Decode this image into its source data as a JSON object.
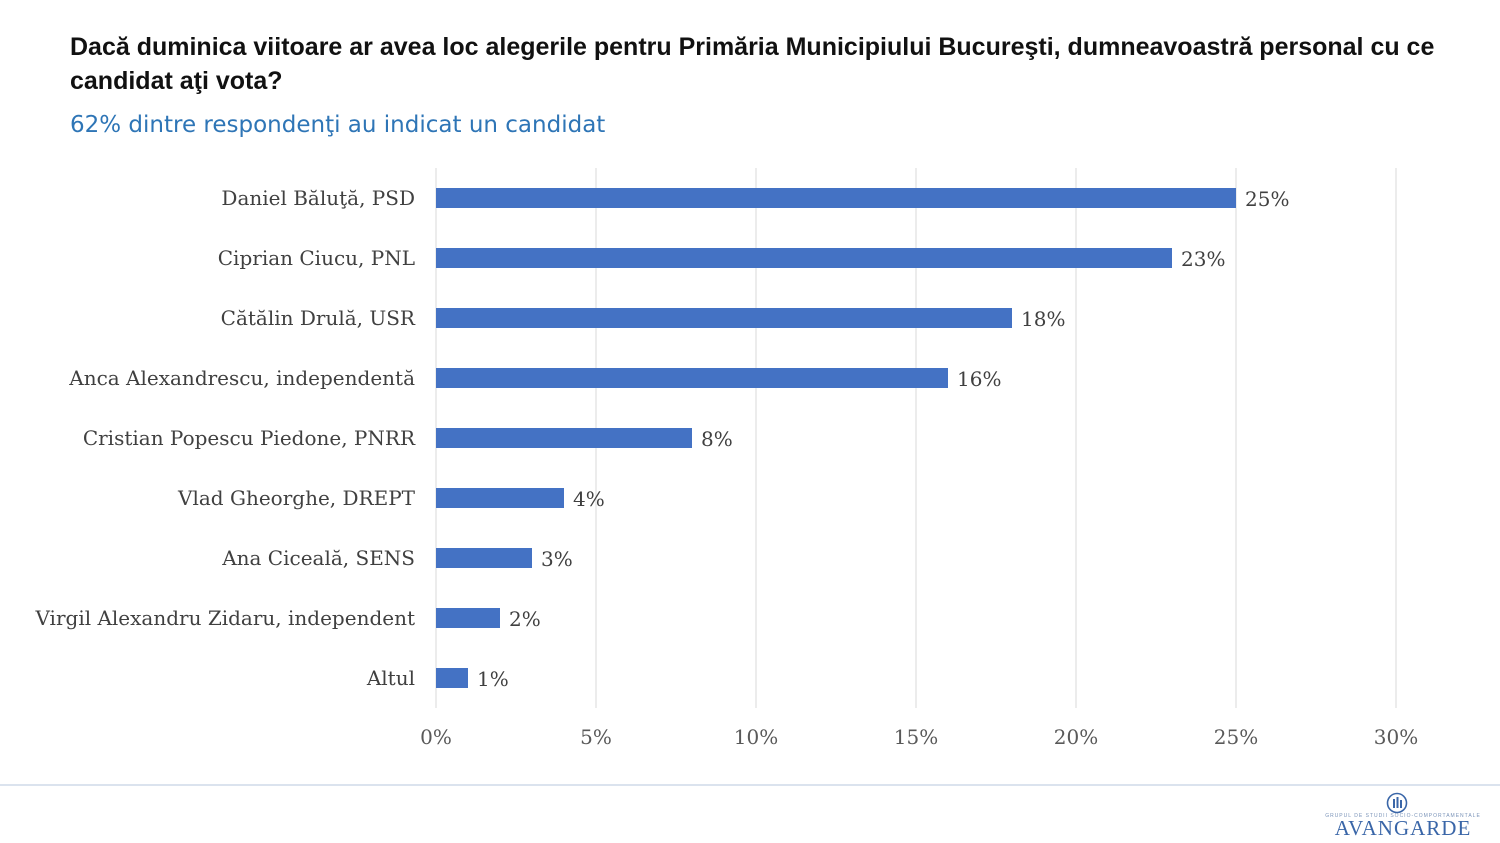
{
  "title": "Dacă duminica viitoare ar avea loc alegerile pentru Primăria Municipiului Bucureşti, dumneavoastră personal cu ce candidat aţi vota?",
  "subtitle": "62% dintre respondenţi au indicat un candidat",
  "chart_data": {
    "type": "bar",
    "orientation": "horizontal",
    "categories": [
      "Daniel Băluţă, PSD",
      "Ciprian Ciucu, PNL",
      "Cătălin Drulă, USR",
      "Anca Alexandrescu, independentă",
      "Cristian Popescu Piedone, PNRR",
      "Vlad Gheorghe, DREPT",
      "Ana Ciceală, SENS",
      "Virgil Alexandru Zidaru, independent",
      "Altul"
    ],
    "values": [
      25,
      23,
      18,
      16,
      8,
      4,
      3,
      2,
      1
    ],
    "data_labels": [
      "25%",
      "23%",
      "18%",
      "16%",
      "8%",
      "4%",
      "3%",
      "2%",
      "1%"
    ],
    "xlim": [
      0,
      30
    ],
    "xticks": [
      0,
      5,
      10,
      15,
      20,
      25,
      30
    ],
    "xtick_labels": [
      "0%",
      "5%",
      "10%",
      "15%",
      "20%",
      "25%",
      "30%"
    ],
    "grid": "vertical",
    "bar_color": "#4472c4"
  },
  "logo": {
    "name": "AVANGARDE",
    "tagline": "GRUPUL DE STUDII SOCIO-COMPORTAMENTALE",
    "color": "#3a66a8"
  }
}
